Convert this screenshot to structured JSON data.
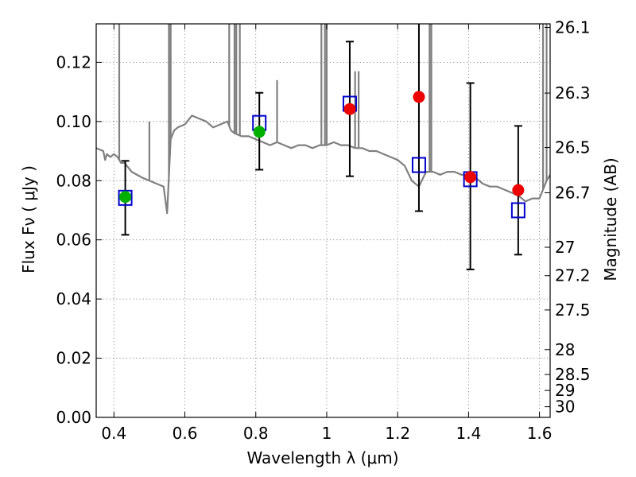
{
  "chart_data": {
    "type": "scatter",
    "xlabel": "Wavelength  λ (μm)",
    "ylabel": "Flux  Fν ( μJy )",
    "ylabel_right": "Magnitude (AB)",
    "xlim": [
      0.35,
      1.63
    ],
    "ylim": [
      0.0,
      0.133
    ],
    "x_ticks": [
      0.4,
      0.6,
      0.8,
      1.0,
      1.2,
      1.4,
      1.6
    ],
    "x_tick_labels": [
      "0.4",
      "0.6",
      "0.8",
      "1",
      "1.2",
      "1.4",
      "1.6"
    ],
    "y_ticks": [
      0.0,
      0.02,
      0.04,
      0.06,
      0.08,
      0.1,
      0.12
    ],
    "y_tick_labels": [
      "0.00",
      "0.02",
      "0.04",
      "0.06",
      "0.08",
      "0.10",
      "0.12"
    ],
    "right_ticks": [
      {
        "label": "26.1",
        "flux": 0.1318
      },
      {
        "label": "26.3",
        "flux": 0.1096
      },
      {
        "label": "26.5",
        "flux": 0.0912
      },
      {
        "label": "26.7",
        "flux": 0.0759
      },
      {
        "label": "27",
        "flux": 0.0575
      },
      {
        "label": "27.2",
        "flux": 0.0479
      },
      {
        "label": "27.5",
        "flux": 0.0363
      },
      {
        "label": "28",
        "flux": 0.0229
      },
      {
        "label": "28.5",
        "flux": 0.0145
      },
      {
        "label": "29",
        "flux": 0.0091
      },
      {
        "label": "30",
        "flux": 0.0036
      }
    ],
    "grid": true,
    "series": [
      {
        "kind": "template-spectrum",
        "color": "#808080",
        "x": [
          0.35,
          0.37,
          0.375,
          0.38,
          0.39,
          0.4,
          0.41,
          0.415,
          0.42,
          0.43,
          0.45,
          0.48,
          0.5,
          0.52,
          0.54,
          0.55,
          0.56,
          0.57,
          0.58,
          0.6,
          0.62,
          0.64,
          0.66,
          0.68,
          0.7,
          0.72,
          0.73,
          0.74,
          0.76,
          0.78,
          0.8,
          0.82,
          0.84,
          0.86,
          0.88,
          0.9,
          0.92,
          0.94,
          0.96,
          0.98,
          1.0,
          1.02,
          1.04,
          1.06,
          1.08,
          1.1,
          1.12,
          1.14,
          1.16,
          1.18,
          1.2,
          1.22,
          1.24,
          1.26,
          1.28,
          1.3,
          1.32,
          1.34,
          1.36,
          1.38,
          1.4,
          1.42,
          1.44,
          1.46,
          1.48,
          1.5,
          1.52,
          1.54,
          1.56,
          1.58,
          1.6,
          1.62,
          1.63
        ],
        "y": [
          0.091,
          0.09,
          0.087,
          0.089,
          0.088,
          0.089,
          0.088,
          0.087,
          0.086,
          0.086,
          0.083,
          0.081,
          0.08,
          0.079,
          0.078,
          0.069,
          0.094,
          0.097,
          0.098,
          0.099,
          0.102,
          0.101,
          0.1,
          0.098,
          0.099,
          0.1,
          0.097,
          0.096,
          0.095,
          0.095,
          0.094,
          0.093,
          0.092,
          0.093,
          0.092,
          0.091,
          0.092,
          0.092,
          0.091,
          0.092,
          0.092,
          0.093,
          0.092,
          0.092,
          0.091,
          0.091,
          0.09,
          0.09,
          0.089,
          0.088,
          0.087,
          0.085,
          0.08,
          0.078,
          0.083,
          0.083,
          0.082,
          0.083,
          0.083,
          0.082,
          0.082,
          0.081,
          0.079,
          0.078,
          0.078,
          0.077,
          0.076,
          0.075,
          0.073,
          0.074,
          0.074,
          0.08,
          0.082
        ]
      },
      {
        "kind": "observed-errorbars",
        "color": "#000000",
        "x": [
          0.432,
          0.81,
          1.065,
          1.26,
          1.405,
          1.54
        ],
        "y": [
          0.0742,
          0.0967,
          0.1042,
          0.0855,
          0.0812,
          0.0768
        ],
        "yerr_low": [
          0.0617,
          0.0837,
          0.0815,
          0.0697,
          0.05,
          0.055
        ],
        "yerr_high": [
          0.0867,
          0.1097,
          0.127,
          0.133,
          0.113,
          0.0985
        ]
      },
      {
        "kind": "model-squares",
        "color": "#0000cc",
        "x": [
          0.432,
          0.81,
          1.065,
          1.26,
          1.405,
          1.54
        ],
        "y": [
          0.0742,
          0.0995,
          0.106,
          0.0853,
          0.0805,
          0.07
        ]
      },
      {
        "kind": "green-points",
        "color": "#00b000",
        "x": [
          0.432,
          0.81
        ],
        "y": [
          0.0745,
          0.0965
        ]
      },
      {
        "kind": "red-points",
        "color": "#ee0000",
        "x": [
          1.065,
          1.26,
          1.405,
          1.54
        ],
        "y": [
          0.1042,
          0.1083,
          0.0812,
          0.0768
        ]
      }
    ]
  }
}
